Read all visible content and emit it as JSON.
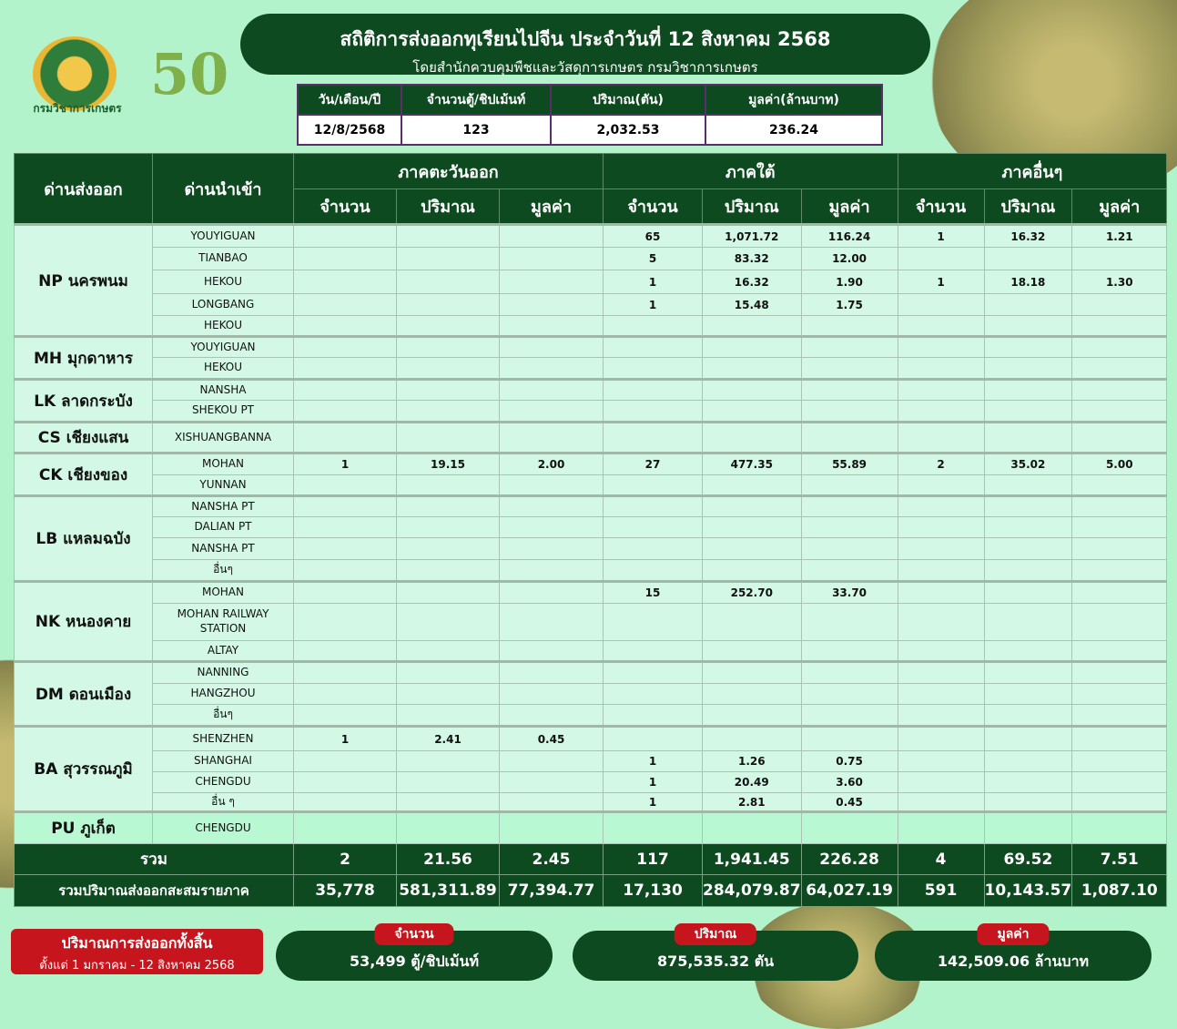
{
  "header": {
    "title": "สถิติการส่งออกทุเรียนไปจีน ประจำวันที่ 12 สิงหาคม 2568",
    "subtitle": "โดยสำนักควบคุมพืชและวัสดุการเกษตร กรมวิชาการเกษตร",
    "logo_text": "กรมวิชาการเกษตร",
    "anniversary_logo": "50"
  },
  "summary": {
    "headers": [
      "วัน/เดือน/ปี",
      "จำนวนตู้/ชิปเม้นท์",
      "ปริมาณ(ตัน)",
      "มูลค่า(ล้านบาท)"
    ],
    "values": [
      "12/8/2568",
      "123",
      "2,032.53",
      "236.24"
    ]
  },
  "table": {
    "col_export": "ด่านส่งออก",
    "col_import": "ด่านนำเข้า",
    "regions": [
      "ภาคตะวันออก",
      "ภาคใต้",
      "ภาคอื่นๆ"
    ],
    "subcols": [
      "จำนวน",
      "ปริมาณ",
      "มูลค่า"
    ],
    "groups": [
      {
        "port": "NP นครพนม",
        "rows": [
          {
            "dest": "YOUYIGUAN",
            "v": [
              "",
              "",
              "",
              "65",
              "1,071.72",
              "116.24",
              "1",
              "16.32",
              "1.21"
            ]
          },
          {
            "dest": "TIANBAO",
            "v": [
              "",
              "",
              "",
              "5",
              "83.32",
              "12.00",
              "",
              "",
              ""
            ]
          },
          {
            "dest": "HEKOU",
            "v": [
              "",
              "",
              "",
              "1",
              "16.32",
              "1.90",
              "1",
              "18.18",
              "1.30"
            ]
          },
          {
            "dest": "LONGBANG",
            "v": [
              "",
              "",
              "",
              "1",
              "15.48",
              "1.75",
              "",
              "",
              ""
            ]
          },
          {
            "dest": "HEKOU",
            "v": [
              "",
              "",
              "",
              "",
              "",
              "",
              "",
              "",
              ""
            ]
          }
        ]
      },
      {
        "port": "MH มุกดาหาร",
        "rows": [
          {
            "dest": "YOUYIGUAN",
            "v": [
              "",
              "",
              "",
              "",
              "",
              "",
              "",
              "",
              ""
            ]
          },
          {
            "dest": "HEKOU",
            "v": [
              "",
              "",
              "",
              "",
              "",
              "",
              "",
              "",
              ""
            ]
          }
        ]
      },
      {
        "port": "LK ลาดกระบัง",
        "rows": [
          {
            "dest": "NANSHA",
            "v": [
              "",
              "",
              "",
              "",
              "",
              "",
              "",
              "",
              ""
            ]
          },
          {
            "dest": "SHEKOU PT",
            "v": [
              "",
              "",
              "",
              "",
              "",
              "",
              "",
              "",
              ""
            ]
          }
        ]
      },
      {
        "port": "CS เชียงแสน",
        "rows": [
          {
            "dest": "XISHUANGBANNA",
            "v": [
              "",
              "",
              "",
              "",
              "",
              "",
              "",
              "",
              ""
            ]
          }
        ]
      },
      {
        "port": "CK เชียงของ",
        "rows": [
          {
            "dest": "MOHAN",
            "v": [
              "1",
              "19.15",
              "2.00",
              "27",
              "477.35",
              "55.89",
              "2",
              "35.02",
              "5.00"
            ]
          },
          {
            "dest": "YUNNAN",
            "v": [
              "",
              "",
              "",
              "",
              "",
              "",
              "",
              "",
              ""
            ]
          }
        ]
      },
      {
        "port": "LB แหลมฉบัง",
        "rows": [
          {
            "dest": "NANSHA PT",
            "v": [
              "",
              "",
              "",
              "",
              "",
              "",
              "",
              "",
              ""
            ]
          },
          {
            "dest": "DALIAN PT",
            "v": [
              "",
              "",
              "",
              "",
              "",
              "",
              "",
              "",
              ""
            ]
          },
          {
            "dest": "NANSHA PT",
            "v": [
              "",
              "",
              "",
              "",
              "",
              "",
              "",
              "",
              ""
            ]
          },
          {
            "dest": "อื่นๆ",
            "v": [
              "",
              "",
              "",
              "",
              "",
              "",
              "",
              "",
              ""
            ]
          }
        ]
      },
      {
        "port": "NK หนองคาย",
        "rows": [
          {
            "dest": "MOHAN",
            "v": [
              "",
              "",
              "",
              "15",
              "252.70",
              "33.70",
              "",
              "",
              ""
            ]
          },
          {
            "dest": "MOHAN RAILWAY STATION",
            "v": [
              "",
              "",
              "",
              "",
              "",
              "",
              "",
              "",
              ""
            ]
          },
          {
            "dest": "ALTAY",
            "v": [
              "",
              "",
              "",
              "",
              "",
              "",
              "",
              "",
              ""
            ]
          }
        ]
      },
      {
        "port": "DM ดอนเมือง",
        "rows": [
          {
            "dest": "NANNING",
            "v": [
              "",
              "",
              "",
              "",
              "",
              "",
              "",
              "",
              ""
            ]
          },
          {
            "dest": "HANGZHOU",
            "v": [
              "",
              "",
              "",
              "",
              "",
              "",
              "",
              "",
              ""
            ]
          },
          {
            "dest": "อื่นๆ",
            "v": [
              "",
              "",
              "",
              "",
              "",
              "",
              "",
              "",
              ""
            ]
          }
        ]
      },
      {
        "port": "BA สุวรรณภูมิ",
        "rows": [
          {
            "dest": "SHENZHEN",
            "v": [
              "1",
              "2.41",
              "0.45",
              "",
              "",
              "",
              "",
              "",
              ""
            ]
          },
          {
            "dest": "SHANGHAI",
            "v": [
              "",
              "",
              "",
              "1",
              "1.26",
              "0.75",
              "",
              "",
              ""
            ]
          },
          {
            "dest": "CHENGDU",
            "v": [
              "",
              "",
              "",
              "1",
              "20.49",
              "3.60",
              "",
              "",
              ""
            ]
          },
          {
            "dest": "อื่น ๆ",
            "v": [
              "",
              "",
              "",
              "1",
              "2.81",
              "0.45",
              "",
              "",
              ""
            ]
          }
        ]
      },
      {
        "port": "PU ภูเก็ต",
        "rows": [
          {
            "dest": "CHENGDU",
            "v": [
              "",
              "",
              "",
              "",
              "",
              "",
              "",
              "",
              ""
            ]
          }
        ]
      }
    ],
    "total": {
      "label": "รวม",
      "v": [
        "2",
        "21.56",
        "2.45",
        "117",
        "1,941.45",
        "226.28",
        "4",
        "69.52",
        "7.51"
      ]
    },
    "cumulative": {
      "label": "รวมปริมาณส่งออกสะสมรายภาค",
      "v": [
        "35,778",
        "581,311.89",
        "77,394.77",
        "17,130",
        "284,079.87",
        "64,027.19",
        "591",
        "10,143.57",
        "1,087.10"
      ]
    }
  },
  "footer": {
    "total_title": "ปริมาณการส่งออกทั้งสิ้น",
    "total_period": "ตั้งแต่ 1 มกราคม  - 12 สิงหาคม 2568",
    "cards": [
      {
        "label": "จำนวน",
        "value": "53,499 ตู้/ชิปเม้นท์"
      },
      {
        "label": "ปริมาณ",
        "value": "875,535.32 ตัน"
      },
      {
        "label": "มูลค่า",
        "value": "142,509.06 ล้านบาท"
      }
    ]
  },
  "colors": {
    "dark_green": "#0e4a1f",
    "background": "#b3f3cb",
    "cell": "#d3f8e5",
    "red": "#c6151d"
  }
}
